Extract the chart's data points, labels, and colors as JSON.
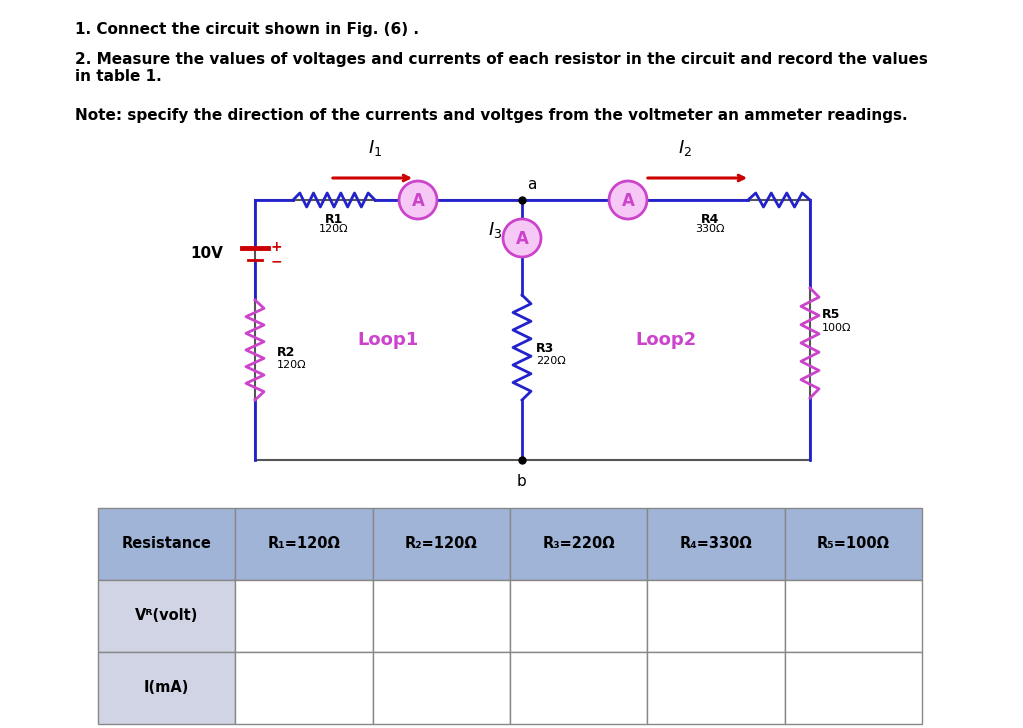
{
  "title1": "1. Connect the circuit shown in Fig. (6) .",
  "title2": "2. Measure the values of voltages and currents of each resistor in the circuit and record the values\nin table 1.",
  "note": "Note: specify the direction of the currents and voltges from the voltmeter an ammeter readings.",
  "circuit": {
    "wire_color": "#2222cc",
    "ammeter_color": "#cc44cc",
    "arrow_color": "#cc0000",
    "loop_color": "#cc44cc",
    "node_color": "#000000",
    "r2_color": "#cc44cc",
    "r5_color": "#cc44cc"
  },
  "table": {
    "header_bg": "#a0b4d8",
    "row_bg": "#d0d4e4",
    "border_color": "#888888",
    "header_labels": [
      "Resistance",
      "R₁=120Ω",
      "R₂=120Ω",
      "R₃=220Ω",
      "R₄=330Ω",
      "R₅=100Ω"
    ],
    "row_labels": [
      "Vᴿ(volt)",
      "I(mA)"
    ]
  }
}
